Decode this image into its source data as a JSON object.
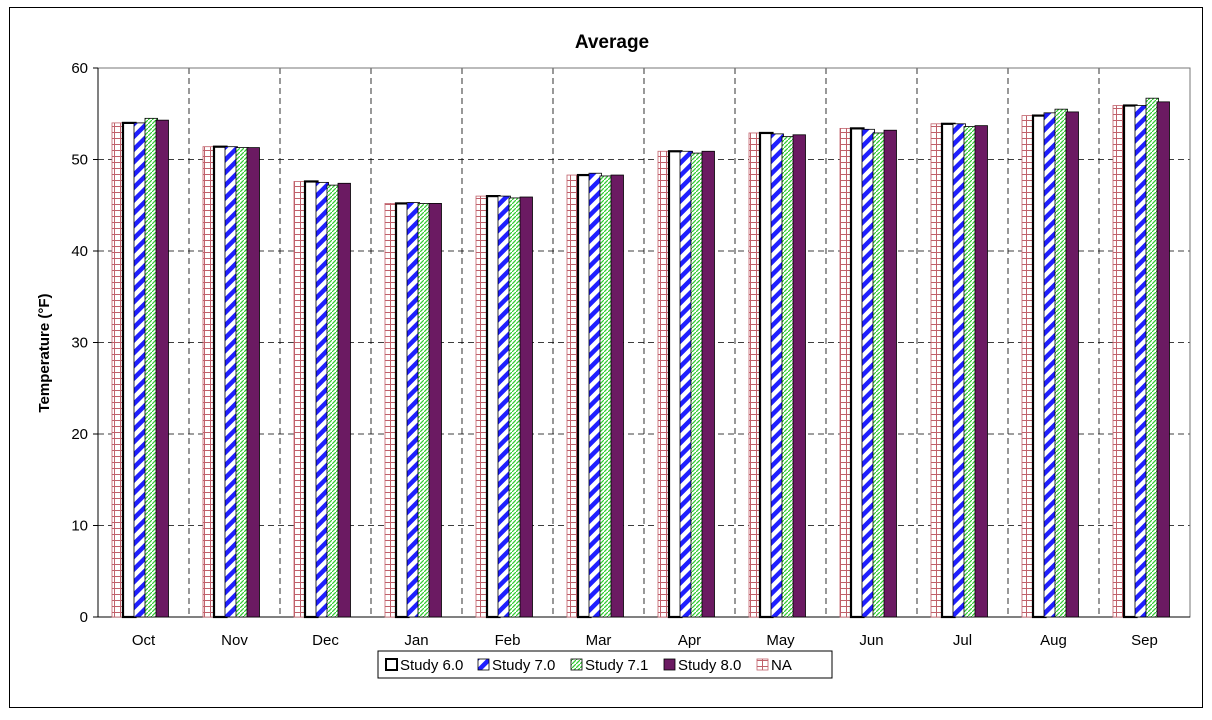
{
  "chart_data": {
    "type": "bar",
    "title": "Average",
    "xlabel": "",
    "ylabel": "Temperature (°F)",
    "ylim": [
      0,
      60
    ],
    "yticks": [
      0,
      10,
      20,
      30,
      40,
      50,
      60
    ],
    "grid": true,
    "legend_position": "bottom",
    "categories": [
      "Oct",
      "Nov",
      "Dec",
      "Jan",
      "Feb",
      "Mar",
      "Apr",
      "May",
      "Jun",
      "Jul",
      "Aug",
      "Sep"
    ],
    "series": [
      {
        "name": "NA",
        "pattern": "grid",
        "color": "#c0606a",
        "values": [
          54.0,
          51.4,
          47.6,
          45.2,
          46.0,
          48.3,
          50.9,
          52.9,
          53.4,
          53.9,
          54.8,
          55.9
        ]
      },
      {
        "name": "Study 6.0",
        "pattern": "hollow",
        "color": "#000000",
        "values": [
          54.0,
          51.4,
          47.6,
          45.2,
          46.0,
          48.3,
          50.9,
          52.9,
          53.4,
          53.9,
          54.8,
          55.9
        ]
      },
      {
        "name": "Study 7.0",
        "pattern": "diagonal",
        "color": "#1f1fff",
        "values": [
          54.0,
          51.4,
          47.5,
          45.3,
          46.0,
          48.5,
          50.9,
          52.8,
          53.3,
          53.9,
          55.1,
          55.9
        ]
      },
      {
        "name": "Study 7.1",
        "pattern": "dots",
        "color": "#33cc33",
        "values": [
          54.5,
          51.3,
          47.2,
          45.2,
          45.8,
          48.2,
          50.7,
          52.5,
          52.9,
          53.6,
          55.5,
          56.7
        ]
      },
      {
        "name": "Study 8.0",
        "pattern": "solid",
        "color": "#6b1a62",
        "values": [
          54.3,
          51.3,
          47.4,
          45.2,
          45.9,
          48.3,
          50.9,
          52.7,
          53.2,
          53.7,
          55.2,
          56.3
        ]
      }
    ],
    "legend_order": [
      "Study 6.0",
      "Study 7.0",
      "Study 7.1",
      "Study 8.0",
      "NA"
    ]
  }
}
